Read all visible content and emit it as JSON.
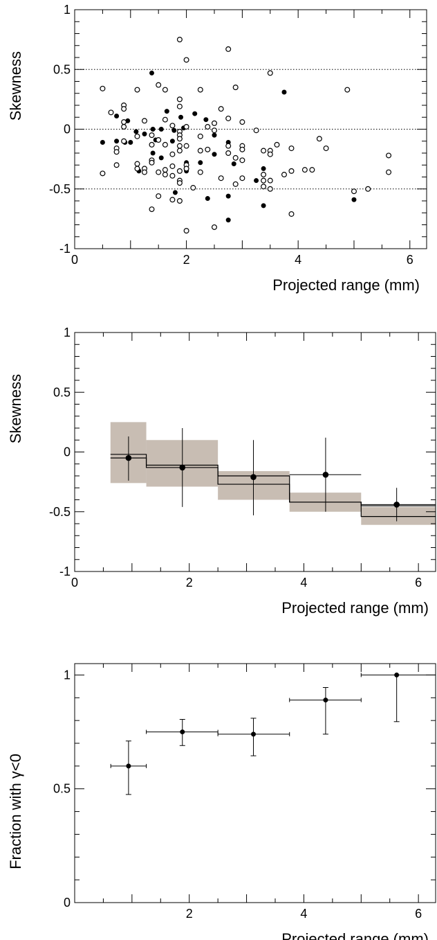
{
  "colors": {
    "band": "#c8bdb3",
    "marker": "#000000",
    "frame": "#000000"
  },
  "chart_data": [
    {
      "type": "scatter",
      "title": "",
      "xlabel": "Projected range (mm)",
      "ylabel": "Skewness",
      "xlim": [
        0,
        6.3
      ],
      "ylim": [
        -1,
        1
      ],
      "xticks": [
        0,
        2,
        4,
        6
      ],
      "yticks": [
        -1,
        -0.5,
        0,
        0.5,
        1
      ],
      "ytick_labels": [
        "-1",
        "-0.5",
        "0",
        "0.5",
        "1"
      ],
      "reference_lines": [
        -0.5,
        0,
        0.5
      ],
      "series": [
        {
          "marker": "filled",
          "points": [
            [
              0.5,
              -0.11
            ],
            [
              0.75,
              0.11
            ],
            [
              0.75,
              -0.1
            ],
            [
              0.9,
              -0.11
            ],
            [
              0.95,
              0.07
            ],
            [
              1.0,
              -0.11
            ],
            [
              1.1,
              -0.02
            ],
            [
              1.15,
              -0.35
            ],
            [
              1.25,
              -0.04
            ],
            [
              1.38,
              0.47
            ],
            [
              1.4,
              0.0
            ],
            [
              1.4,
              -0.2
            ],
            [
              1.45,
              -0.09
            ],
            [
              1.55,
              -0.24
            ],
            [
              1.55,
              0.0
            ],
            [
              1.65,
              0.15
            ],
            [
              1.75,
              -0.1
            ],
            [
              1.78,
              -0.01
            ],
            [
              1.8,
              -0.53
            ],
            [
              1.9,
              0.1
            ],
            [
              1.95,
              0.01
            ],
            [
              2.0,
              -0.28
            ],
            [
              2.0,
              -0.35
            ],
            [
              2.15,
              0.13
            ],
            [
              2.25,
              -0.28
            ],
            [
              2.35,
              0.08
            ],
            [
              2.38,
              -0.58
            ],
            [
              2.5,
              -0.05
            ],
            [
              2.5,
              -0.21
            ],
            [
              2.75,
              -0.11
            ],
            [
              2.75,
              -0.56
            ],
            [
              2.75,
              -0.76
            ],
            [
              2.85,
              -0.29
            ],
            [
              3.25,
              -0.43
            ],
            [
              3.38,
              -0.33
            ],
            [
              3.38,
              -0.64
            ],
            [
              3.75,
              0.31
            ],
            [
              5.0,
              -0.59
            ]
          ]
        },
        {
          "marker": "open",
          "points": [
            [
              0.5,
              0.34
            ],
            [
              0.5,
              -0.37
            ],
            [
              0.65,
              0.14
            ],
            [
              0.75,
              -0.16
            ],
            [
              0.75,
              -0.19
            ],
            [
              0.75,
              -0.3
            ],
            [
              0.88,
              0.2
            ],
            [
              0.88,
              0.17
            ],
            [
              0.88,
              0.06
            ],
            [
              0.88,
              0.02
            ],
            [
              0.88,
              -0.1
            ],
            [
              1.12,
              0.33
            ],
            [
              1.12,
              -0.06
            ],
            [
              1.12,
              -0.29
            ],
            [
              1.12,
              -0.33
            ],
            [
              1.25,
              0.07
            ],
            [
              1.25,
              -0.33
            ],
            [
              1.25,
              -0.36
            ],
            [
              1.38,
              -0.05
            ],
            [
              1.38,
              -0.13
            ],
            [
              1.38,
              -0.26
            ],
            [
              1.38,
              -0.28
            ],
            [
              1.38,
              -0.67
            ],
            [
              1.5,
              0.37
            ],
            [
              1.5,
              -0.09
            ],
            [
              1.5,
              -0.36
            ],
            [
              1.5,
              -0.56
            ],
            [
              1.62,
              0.33
            ],
            [
              1.62,
              0.08
            ],
            [
              1.62,
              -0.13
            ],
            [
              1.62,
              -0.34
            ],
            [
              1.62,
              -0.38
            ],
            [
              1.75,
              0.03
            ],
            [
              1.75,
              -0.21
            ],
            [
              1.75,
              -0.31
            ],
            [
              1.75,
              -0.39
            ],
            [
              1.75,
              -0.59
            ],
            [
              1.88,
              0.75
            ],
            [
              1.88,
              0.25
            ],
            [
              1.88,
              0.19
            ],
            [
              1.88,
              -0.02
            ],
            [
              1.88,
              -0.05
            ],
            [
              1.88,
              -0.08
            ],
            [
              1.88,
              -0.14
            ],
            [
              1.88,
              -0.18
            ],
            [
              1.88,
              -0.35
            ],
            [
              1.88,
              -0.43
            ],
            [
              1.88,
              -0.45
            ],
            [
              1.88,
              -0.6
            ],
            [
              2.0,
              0.58
            ],
            [
              2.0,
              0.02
            ],
            [
              2.0,
              -0.14
            ],
            [
              2.0,
              -0.3
            ],
            [
              2.0,
              -0.33
            ],
            [
              2.0,
              -0.85
            ],
            [
              2.12,
              -0.49
            ],
            [
              2.25,
              0.33
            ],
            [
              2.25,
              -0.06
            ],
            [
              2.25,
              -0.18
            ],
            [
              2.25,
              -0.36
            ],
            [
              2.38,
              0.02
            ],
            [
              2.38,
              -0.17
            ],
            [
              2.5,
              0.05
            ],
            [
              2.5,
              -0.01
            ],
            [
              2.5,
              -0.82
            ],
            [
              2.62,
              0.17
            ],
            [
              2.62,
              -0.41
            ],
            [
              2.75,
              0.67
            ],
            [
              2.75,
              0.09
            ],
            [
              2.75,
              -0.14
            ],
            [
              2.75,
              -0.2
            ],
            [
              2.88,
              0.35
            ],
            [
              2.88,
              -0.24
            ],
            [
              2.88,
              -0.46
            ],
            [
              3.0,
              0.06
            ],
            [
              3.0,
              -0.14
            ],
            [
              3.0,
              -0.17
            ],
            [
              3.0,
              -0.26
            ],
            [
              3.0,
              -0.41
            ],
            [
              3.25,
              -0.01
            ],
            [
              3.38,
              -0.18
            ],
            [
              3.38,
              -0.38
            ],
            [
              3.38,
              -0.43
            ],
            [
              3.38,
              -0.48
            ],
            [
              3.5,
              0.47
            ],
            [
              3.5,
              -0.18
            ],
            [
              3.5,
              -0.21
            ],
            [
              3.5,
              -0.43
            ],
            [
              3.5,
              -0.5
            ],
            [
              3.62,
              -0.13
            ],
            [
              3.75,
              -0.38
            ],
            [
              3.88,
              -0.16
            ],
            [
              3.88,
              -0.35
            ],
            [
              3.88,
              -0.71
            ],
            [
              4.12,
              -0.34
            ],
            [
              4.25,
              -0.34
            ],
            [
              4.38,
              -0.08
            ],
            [
              4.5,
              -0.16
            ],
            [
              4.88,
              0.33
            ],
            [
              5.0,
              -0.52
            ],
            [
              5.25,
              -0.5
            ],
            [
              5.62,
              -0.22
            ],
            [
              5.62,
              -0.36
            ]
          ]
        }
      ]
    },
    {
      "type": "line",
      "title": "",
      "xlabel": "Projected range (mm)",
      "ylabel": "Skewness",
      "xlim": [
        0,
        6.3
      ],
      "ylim": [
        -1,
        1
      ],
      "xticks": [
        0,
        2,
        4,
        6
      ],
      "yticks": [
        -1,
        -0.5,
        0,
        0.5,
        1
      ],
      "ytick_labels": [
        "-1",
        "-0.5",
        "0",
        "0.5",
        "1"
      ],
      "bins": [
        {
          "x_low": 0.625,
          "x_high": 1.25,
          "value": -0.05,
          "line_upper": -0.02,
          "line_lower": -0.05,
          "band_low": -0.26,
          "band_high": 0.25
        },
        {
          "x_low": 1.25,
          "x_high": 2.5,
          "value": -0.13,
          "line_upper": -0.11,
          "line_lower": -0.13,
          "band_low": -0.29,
          "band_high": 0.1
        },
        {
          "x_low": 2.5,
          "x_high": 3.75,
          "value": -0.2,
          "line_upper": -0.2,
          "line_lower": -0.27,
          "band_low": -0.4,
          "band_high": -0.16
        },
        {
          "x_low": 3.75,
          "x_high": 5.0,
          "value": -0.42,
          "line_upper": -0.42,
          "line_lower": -0.42,
          "band_low": -0.5,
          "band_high": -0.34
        },
        {
          "x_low": 5.0,
          "x_high": 6.3,
          "value": -0.54,
          "line_upper": -0.45,
          "line_lower": -0.54,
          "band_low": -0.61,
          "band_high": -0.46
        }
      ],
      "points": [
        {
          "x": 0.94,
          "y": -0.05,
          "y_low": -0.24,
          "y_high": 0.13,
          "x_low": 0.94,
          "x_high": 0.94
        },
        {
          "x": 1.88,
          "y": -0.13,
          "y_low": -0.46,
          "y_high": 0.2,
          "x_low": 1.88,
          "x_high": 1.88
        },
        {
          "x": 3.12,
          "y": -0.21,
          "y_low": -0.53,
          "y_high": 0.1,
          "x_low": 3.12,
          "x_high": 3.12
        },
        {
          "x": 4.38,
          "y": -0.19,
          "y_low": -0.5,
          "y_high": 0.12,
          "x_low": 3.75,
          "x_high": 5.0
        },
        {
          "x": 5.62,
          "y": -0.44,
          "y_low": -0.58,
          "y_high": -0.3,
          "x_low": 5.0,
          "x_high": 6.3
        }
      ]
    },
    {
      "type": "scatter",
      "title": "",
      "xlabel": "Projected range (mm)",
      "ylabel": "Fraction with γ<0",
      "xlim": [
        0,
        6.3
      ],
      "ylim": [
        0,
        1.05
      ],
      "xticks": [
        2,
        4,
        6
      ],
      "yticks": [
        0,
        0.5,
        1
      ],
      "ytick_labels": [
        "0",
        "0.5",
        "1"
      ],
      "points": [
        {
          "x": 0.94,
          "y": 0.6,
          "y_low": 0.475,
          "y_high": 0.71,
          "x_low": 0.63,
          "x_high": 1.25
        },
        {
          "x": 1.88,
          "y": 0.75,
          "y_low": 0.69,
          "y_high": 0.805,
          "x_low": 1.25,
          "x_high": 2.5
        },
        {
          "x": 3.12,
          "y": 0.74,
          "y_low": 0.645,
          "y_high": 0.81,
          "x_low": 2.5,
          "x_high": 3.75
        },
        {
          "x": 4.38,
          "y": 0.89,
          "y_low": 0.74,
          "y_high": 0.945,
          "x_low": 3.75,
          "x_high": 5.0
        },
        {
          "x": 5.62,
          "y": 1.0,
          "y_low": 0.795,
          "y_high": 1.0,
          "x_low": 5.0,
          "x_high": 6.3
        }
      ]
    }
  ]
}
